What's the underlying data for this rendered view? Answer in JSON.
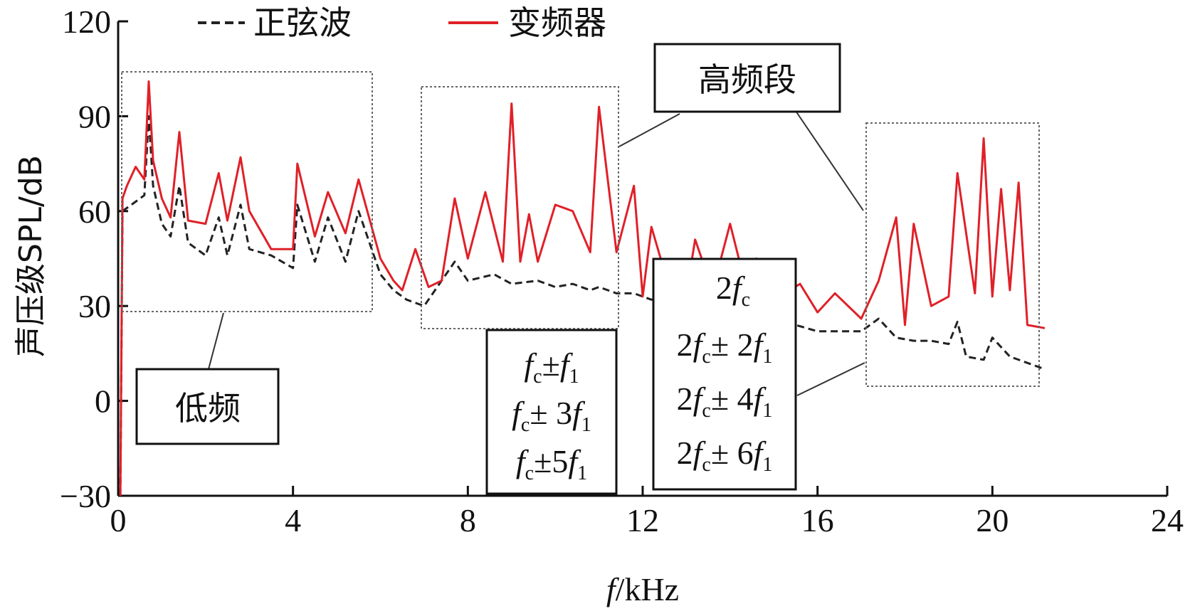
{
  "chart_data": {
    "type": "line",
    "title": "",
    "xlabel": "f/kHz",
    "xlabel_parts": {
      "italic": "f",
      "rest": "/kHz"
    },
    "ylabel": "声压级SPL/dB",
    "xlim": [
      0,
      24
    ],
    "ylim": [
      -30,
      120
    ],
    "x_ticks": [
      0,
      4,
      8,
      12,
      16,
      20,
      24
    ],
    "y_ticks": [
      -30,
      0,
      30,
      60,
      90,
      120
    ],
    "x_tick_labels": [
      "0",
      "4",
      "8",
      "12",
      "16",
      "20",
      "24"
    ],
    "y_tick_labels": [
      "−30",
      "0",
      "30",
      "60",
      "90",
      "120"
    ],
    "grid": false,
    "legend_position": "top",
    "series": [
      {
        "name": "正弦波",
        "color": "#222222",
        "style": "dashed",
        "x": [
          0.05,
          0.1,
          0.2,
          0.4,
          0.6,
          0.7,
          0.8,
          1.0,
          1.2,
          1.4,
          1.6,
          2.0,
          2.3,
          2.5,
          2.8,
          3.0,
          3.5,
          4.0,
          4.1,
          4.5,
          4.8,
          5.2,
          5.5,
          6.0,
          6.3,
          6.6,
          7.0,
          7.4,
          7.7,
          8.0,
          8.6,
          9.0,
          9.6,
          10.0,
          10.4,
          10.8,
          11.0,
          11.4,
          11.8,
          12.2,
          12.6,
          13.0,
          13.2,
          13.6,
          14.0,
          14.4,
          14.6,
          15.0,
          15.5,
          16.0,
          16.5,
          17.0,
          17.4,
          17.8,
          18.2,
          18.6,
          19.0,
          19.2,
          19.4,
          19.8,
          20.0,
          20.4,
          20.8,
          21.2
        ],
        "y": [
          -30,
          60,
          61,
          63,
          65,
          90,
          68,
          56,
          52,
          68,
          50,
          46,
          58,
          46,
          62,
          48,
          46,
          42,
          62,
          44,
          58,
          44,
          60,
          40,
          35,
          32,
          30,
          38,
          44,
          38,
          40,
          37,
          38,
          36,
          37,
          35,
          36,
          34,
          34,
          32,
          33,
          31,
          38,
          30,
          37,
          31,
          30,
          27,
          24,
          22,
          22,
          22,
          26,
          20,
          19,
          19,
          18,
          25,
          14,
          13,
          20,
          14,
          12,
          10
        ]
      },
      {
        "name": "变频器",
        "color": "#e02028",
        "style": "solid",
        "x": [
          0.05,
          0.1,
          0.2,
          0.4,
          0.6,
          0.7,
          0.8,
          1.0,
          1.2,
          1.4,
          1.6,
          2.0,
          2.3,
          2.5,
          2.8,
          3.0,
          3.5,
          4.0,
          4.1,
          4.5,
          4.8,
          5.2,
          5.5,
          6.0,
          6.3,
          6.5,
          6.8,
          7.1,
          7.4,
          7.7,
          8.0,
          8.4,
          8.8,
          9.0,
          9.2,
          9.4,
          9.6,
          10.0,
          10.4,
          10.8,
          11.0,
          11.4,
          11.8,
          12.0,
          12.2,
          12.6,
          13.0,
          13.2,
          13.6,
          14.0,
          14.4,
          14.6,
          15.0,
          15.6,
          16.0,
          16.4,
          17.0,
          17.4,
          17.8,
          18.0,
          18.2,
          18.6,
          19.0,
          19.2,
          19.6,
          19.8,
          20.0,
          20.2,
          20.4,
          20.6,
          20.8,
          21.2
        ],
        "y": [
          -30,
          64,
          68,
          74,
          70,
          101,
          76,
          64,
          58,
          85,
          57,
          56,
          72,
          57,
          77,
          60,
          48,
          48,
          75,
          52,
          66,
          53,
          70,
          45,
          38,
          35,
          48,
          36,
          38,
          64,
          45,
          66,
          44,
          94,
          44,
          59,
          44,
          62,
          60,
          47,
          93,
          47,
          68,
          33,
          55,
          36,
          34,
          51,
          35,
          56,
          34,
          45,
          32,
          37,
          28,
          34,
          26,
          38,
          58,
          24,
          56,
          30,
          33,
          72,
          34,
          83,
          33,
          67,
          35,
          69,
          24,
          23
        ]
      }
    ],
    "annotations": [
      {
        "text": "低频",
        "kind": "box-label"
      },
      {
        "text": "高频段",
        "kind": "box-label"
      }
    ],
    "formula_boxes": [
      [
        "fc±f1",
        "fc±3f1",
        "fc±5f1"
      ],
      [
        "2fc±2f1",
        "2fc±4f1",
        "2fc±6f1"
      ]
    ],
    "formula_2fc": "2fc"
  }
}
